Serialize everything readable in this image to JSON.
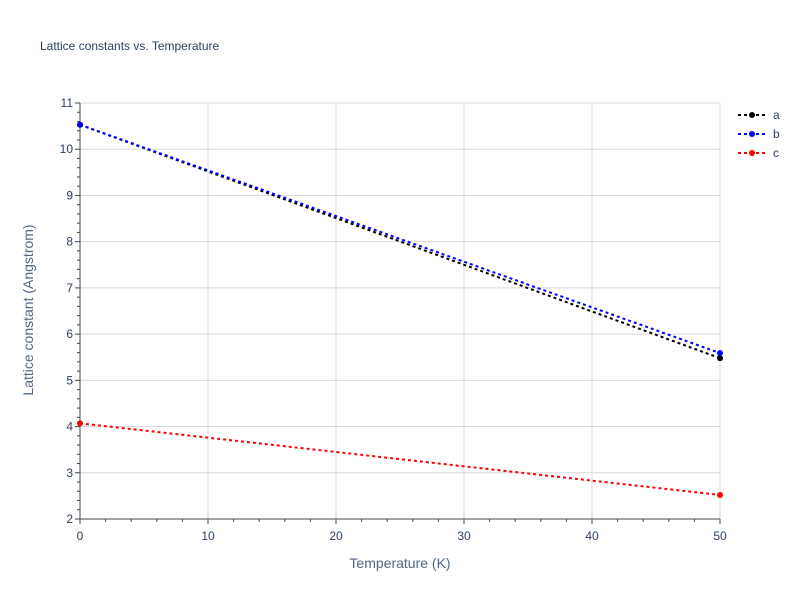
{
  "chart_data": {
    "type": "line",
    "title": "Lattice constants vs. Temperature",
    "xlabel": "Temperature (K)",
    "ylabel": "Lattice constant (Angstrom)",
    "xlim": [
      0,
      50
    ],
    "ylim": [
      2,
      11
    ],
    "x_ticks": [
      0,
      10,
      20,
      30,
      40,
      50
    ],
    "y_ticks": [
      2,
      3,
      4,
      5,
      6,
      7,
      8,
      9,
      10,
      11
    ],
    "grid": true,
    "legend_position": "top-right",
    "series": [
      {
        "name": "a",
        "color": "#000000",
        "x": [
          0,
          50
        ],
        "y": [
          10.53,
          5.48
        ]
      },
      {
        "name": "b",
        "color": "#0000ff",
        "x": [
          0,
          50
        ],
        "y": [
          10.53,
          5.59
        ]
      },
      {
        "name": "c",
        "color": "#ff0000",
        "x": [
          0,
          50
        ],
        "y": [
          4.07,
          2.52
        ]
      }
    ]
  }
}
